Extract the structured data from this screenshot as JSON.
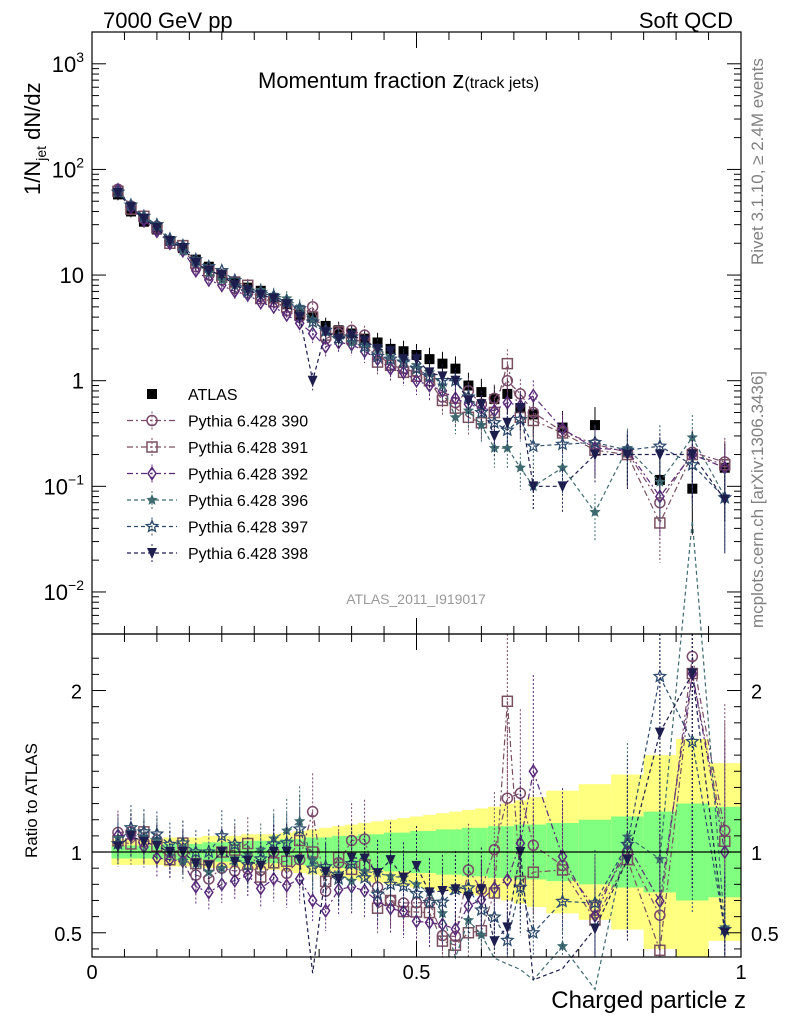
{
  "header": {
    "left": "7000 GeV pp",
    "right": "Soft QCD"
  },
  "side_labels": {
    "rivet": "Rivet 3.1.10, ≥ 2.4M events",
    "mcplots": "mcplots.cern.ch [arXiv:1306.3436]"
  },
  "analysis_id": "ATLAS_2011_I919017",
  "chart_data": [
    {
      "type": "scatter",
      "title_main": "Momentum fraction ",
      "title_var": "z",
      "title_sub": "(track jets)",
      "ylabel_main": "1/N",
      "ylabel_sub": "jet",
      "ylabel_tail": " dN/dz",
      "yscale": "log",
      "ylim": [
        0.004,
        2000
      ],
      "xlim": [
        0,
        1
      ],
      "x": [
        0.04,
        0.06,
        0.08,
        0.1,
        0.12,
        0.14,
        0.16,
        0.18,
        0.2,
        0.22,
        0.24,
        0.26,
        0.28,
        0.3,
        0.32,
        0.34,
        0.36,
        0.38,
        0.4,
        0.42,
        0.44,
        0.46,
        0.48,
        0.5,
        0.52,
        0.54,
        0.56,
        0.58,
        0.6,
        0.62,
        0.64,
        0.66,
        0.68,
        0.725,
        0.775,
        0.825,
        0.875,
        0.925,
        0.975
      ],
      "ytick_labels": [
        {
          "v": 0.01,
          "base": "10",
          "exp": "−2"
        },
        {
          "v": 0.1,
          "base": "10",
          "exp": "−1"
        },
        {
          "v": 1,
          "base": "1",
          "exp": ""
        },
        {
          "v": 10,
          "base": "10",
          "exp": ""
        },
        {
          "v": 100,
          "base": "10",
          "exp": "2"
        },
        {
          "v": 1000,
          "base": "10",
          "exp": "3"
        }
      ],
      "series": [
        {
          "name": "ATLAS",
          "color": "#000000",
          "marker": "square-filled",
          "dash": "none",
          "values": [
            58,
            40,
            32,
            27,
            21,
            18,
            14,
            12,
            10,
            8.5,
            7.6,
            7.1,
            6.0,
            5.3,
            4.2,
            4.0,
            3.3,
            3.0,
            2.8,
            2.5,
            2.3,
            2.0,
            1.9,
            1.75,
            1.6,
            1.45,
            1.3,
            0.9,
            0.78,
            0.67,
            0.75,
            0.55,
            0.48,
            0.36,
            0.38,
            0.21,
            0.115,
            0.095,
            0.15
          ]
        },
        {
          "name": "Pythia 6.428 390",
          "color": "#7a4a6a",
          "marker": "circle-open",
          "dash": "6,3,2,3",
          "values": [
            65,
            45,
            34,
            29,
            21,
            18,
            12,
            10,
            9.0,
            7.5,
            6.8,
            6.3,
            6.0,
            4.6,
            4.0,
            5.0,
            2.5,
            2.8,
            3.0,
            2.7,
            1.8,
            1.4,
            1.3,
            1.2,
            1.1,
            0.7,
            0.62,
            0.8,
            0.6,
            0.68,
            1.0,
            0.75,
            0.5,
            0.33,
            0.25,
            0.21,
            0.07,
            0.21,
            0.17
          ]
        },
        {
          "name": "Pythia 6.428 391",
          "color": "#7a5060",
          "marker": "square-open",
          "dash": "6,3,2,3",
          "values": [
            62,
            42,
            36,
            28,
            20,
            19,
            13,
            11,
            10,
            8.6,
            8.0,
            6.0,
            5.6,
            5.0,
            4.5,
            4.0,
            2.7,
            2.9,
            2.5,
            2.3,
            1.5,
            1.4,
            1.2,
            1.1,
            1.0,
            0.65,
            0.55,
            0.45,
            0.4,
            0.5,
            1.45,
            0.45,
            0.42,
            0.32,
            0.22,
            0.2,
            0.045,
            0.2,
            0.16
          ]
        },
        {
          "name": "Pythia 6.428 392",
          "color": "#5a2a7a",
          "marker": "diamond-open",
          "dash": "6,3,2,3",
          "values": [
            64,
            44,
            33,
            26,
            20,
            17,
            11,
            9.0,
            8.0,
            7.0,
            6.5,
            5.5,
            5.0,
            4.2,
            3.5,
            2.8,
            2.1,
            2.3,
            2.2,
            1.9,
            1.6,
            1.3,
            1.2,
            1.0,
            0.9,
            0.8,
            0.68,
            0.6,
            0.55,
            0.52,
            0.62,
            0.58,
            0.72,
            0.35,
            0.23,
            0.22,
            0.08,
            0.2,
            0.15
          ]
        },
        {
          "name": "Pythia 6.428 396",
          "color": "#3e6a70",
          "marker": "star-filled",
          "dash": "4,3",
          "values": [
            63,
            45,
            35,
            29,
            21,
            17,
            13,
            10.5,
            9.0,
            8.0,
            7.5,
            7.2,
            6.5,
            6.0,
            5.0,
            3.8,
            2.9,
            2.6,
            2.3,
            2.2,
            2.0,
            1.7,
            1.6,
            1.4,
            1.2,
            0.9,
            0.45,
            0.52,
            0.38,
            0.23,
            0.23,
            0.15,
            0.1,
            0.15,
            0.057,
            0.23,
            0.11,
            0.29,
            0.08
          ]
        },
        {
          "name": "Pythia 6.428 397",
          "color": "#2e4d6e",
          "marker": "star-open",
          "dash": "4,3",
          "values": [
            61,
            46,
            36,
            30,
            22,
            19,
            14,
            12,
            11,
            8.9,
            7.0,
            6.8,
            6.3,
            5.6,
            4.8,
            3.6,
            3.0,
            2.5,
            2.6,
            2.1,
            1.7,
            1.6,
            1.5,
            1.3,
            1.1,
            1.0,
            1.0,
            0.7,
            0.5,
            0.4,
            0.34,
            0.43,
            0.24,
            0.25,
            0.26,
            0.22,
            0.24,
            0.16,
            0.078
          ]
        },
        {
          "name": "Pythia 6.428 398",
          "color": "#1d1d4e",
          "marker": "triangle-down-filled",
          "dash": "4,3",
          "values": [
            60,
            44,
            34,
            28,
            21,
            18,
            13,
            11,
            10,
            8.0,
            7.2,
            6.5,
            6.0,
            5.3,
            4.0,
            1.0,
            2.9,
            2.5,
            2.7,
            2.4,
            2.0,
            1.9,
            1.6,
            1.6,
            1.2,
            1.1,
            1.0,
            0.65,
            0.6,
            0.3,
            0.4,
            0.55,
            0.1,
            0.1,
            0.2,
            0.2,
            0.2,
            0.2,
            0.075
          ]
        }
      ]
    },
    {
      "type": "band",
      "ylabel": "Ratio to ATLAS",
      "xlabel": "Charged particle z",
      "ylim": [
        0.35,
        2.35
      ],
      "yticks": [
        0.5,
        1,
        2
      ],
      "ytick_labels": [
        "0.5",
        "1",
        "2"
      ],
      "xticks": [
        0,
        0.5,
        1
      ],
      "xtick_labels": [
        "0",
        "0.5",
        "1"
      ],
      "bins": [
        0.03,
        0.05,
        0.07,
        0.09,
        0.11,
        0.13,
        0.15,
        0.17,
        0.19,
        0.21,
        0.23,
        0.25,
        0.27,
        0.29,
        0.31,
        0.33,
        0.35,
        0.37,
        0.39,
        0.41,
        0.43,
        0.45,
        0.47,
        0.49,
        0.51,
        0.53,
        0.55,
        0.57,
        0.59,
        0.61,
        0.63,
        0.65,
        0.67,
        0.7,
        0.75,
        0.8,
        0.85,
        0.9,
        0.95,
        1.0
      ],
      "stat_err": [
        0.04,
        0.04,
        0.04,
        0.04,
        0.05,
        0.05,
        0.05,
        0.06,
        0.06,
        0.06,
        0.07,
        0.07,
        0.07,
        0.08,
        0.08,
        0.09,
        0.09,
        0.1,
        0.1,
        0.11,
        0.11,
        0.12,
        0.12,
        0.13,
        0.13,
        0.14,
        0.14,
        0.15,
        0.15,
        0.16,
        0.16,
        0.17,
        0.17,
        0.18,
        0.2,
        0.22,
        0.25,
        0.3,
        0.28
      ],
      "total_err": [
        0.08,
        0.08,
        0.08,
        0.08,
        0.09,
        0.09,
        0.09,
        0.1,
        0.1,
        0.1,
        0.11,
        0.11,
        0.11,
        0.12,
        0.13,
        0.14,
        0.15,
        0.16,
        0.17,
        0.18,
        0.19,
        0.2,
        0.21,
        0.22,
        0.23,
        0.24,
        0.25,
        0.26,
        0.27,
        0.28,
        0.3,
        0.32,
        0.34,
        0.38,
        0.42,
        0.48,
        0.6,
        0.7,
        0.55
      ],
      "colors": {
        "stat": "#80ff80",
        "total": "#ffff80"
      }
    }
  ]
}
